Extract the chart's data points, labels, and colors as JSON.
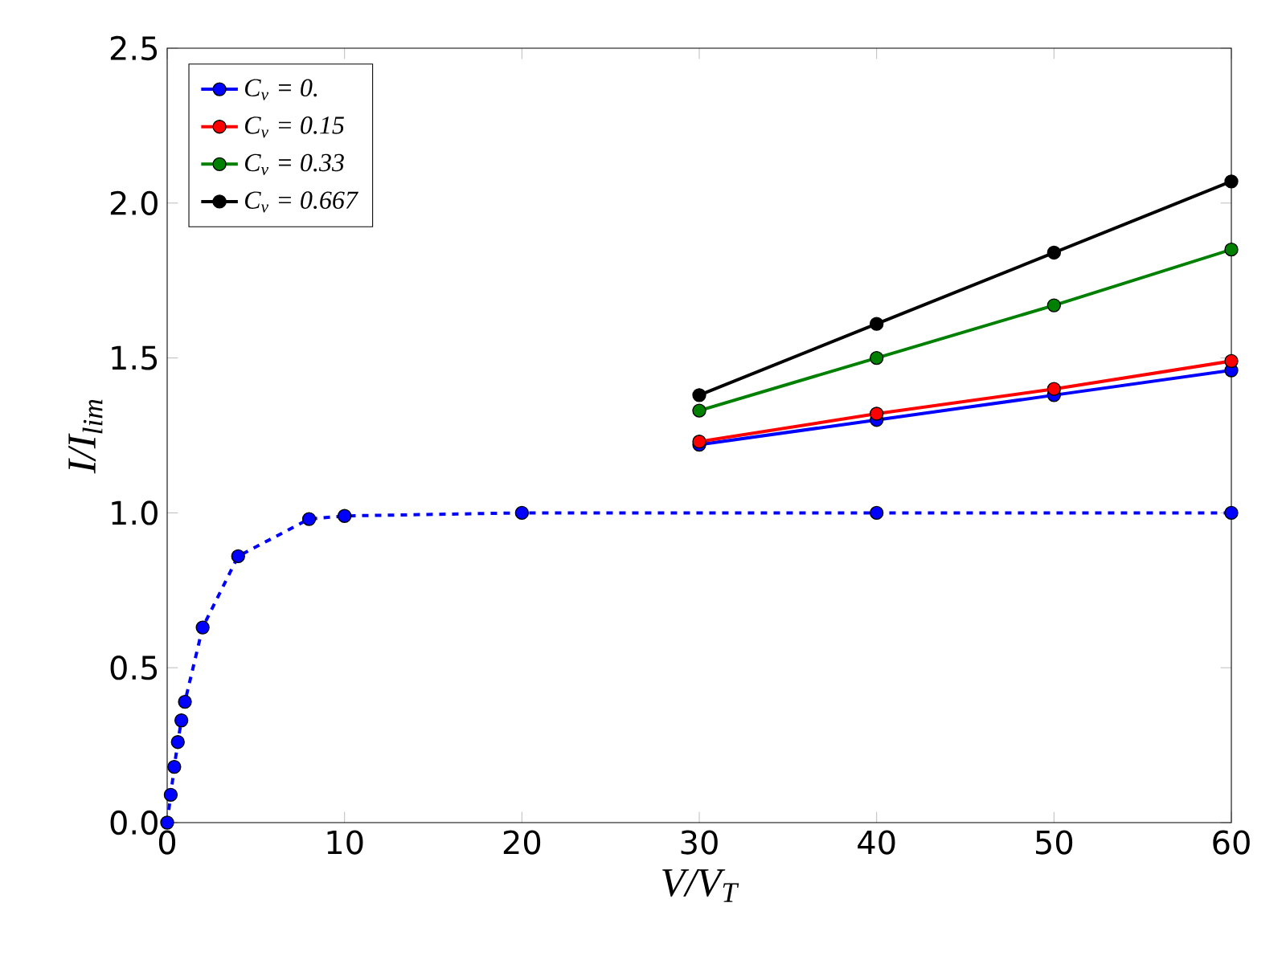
{
  "chart_data": {
    "type": "line",
    "xlabel": "V/V$_{T}$",
    "ylabel": "I/I$_{lim}$",
    "xlim": [
      0,
      60
    ],
    "ylim": [
      0,
      2.5
    ],
    "xticks": [
      0,
      10,
      20,
      30,
      40,
      50,
      60
    ],
    "yticks": [
      {
        "value": 0,
        "label": "0.0"
      },
      0.5,
      {
        "value": 1,
        "label": "1.0"
      },
      1.5,
      {
        "value": 2,
        "label": "2.0"
      },
      2.5
    ],
    "marker": "circle",
    "legend": "top left",
    "grid": false,
    "series": [
      {
        "color": "#0000ff",
        "line_style": "dashed",
        "x": [
          0,
          0.2,
          0.4,
          0.6,
          0.8,
          1.0,
          2,
          4,
          8,
          10,
          20,
          40,
          60
        ],
        "values": [
          0,
          0.09,
          0.18,
          0.26,
          0.33,
          0.39,
          0.63,
          0.86,
          0.98,
          0.99,
          1.0,
          1.0,
          1.0
        ]
      },
      {
        "name": "C$_{v}$ = 0.",
        "color": "#0000ff",
        "x": [
          30,
          40,
          50,
          60
        ],
        "values": [
          1.22,
          1.3,
          1.38,
          1.46
        ]
      },
      {
        "name": "C$_{v}$ = 0.15",
        "color": "#ff0000",
        "x": [
          30,
          40,
          50,
          60
        ],
        "values": [
          1.23,
          1.32,
          1.4,
          1.49
        ]
      },
      {
        "name": "C$_{v}$ = 0.33",
        "color": "#008000",
        "x": [
          30,
          40,
          50,
          60
        ],
        "values": [
          1.33,
          1.5,
          1.67,
          1.85
        ]
      },
      {
        "name": "C$_{v}$ = 0.667",
        "color": "#000000",
        "x": [
          30,
          40,
          50,
          60
        ],
        "values": [
          1.38,
          1.61,
          1.84,
          2.07
        ]
      }
    ]
  }
}
